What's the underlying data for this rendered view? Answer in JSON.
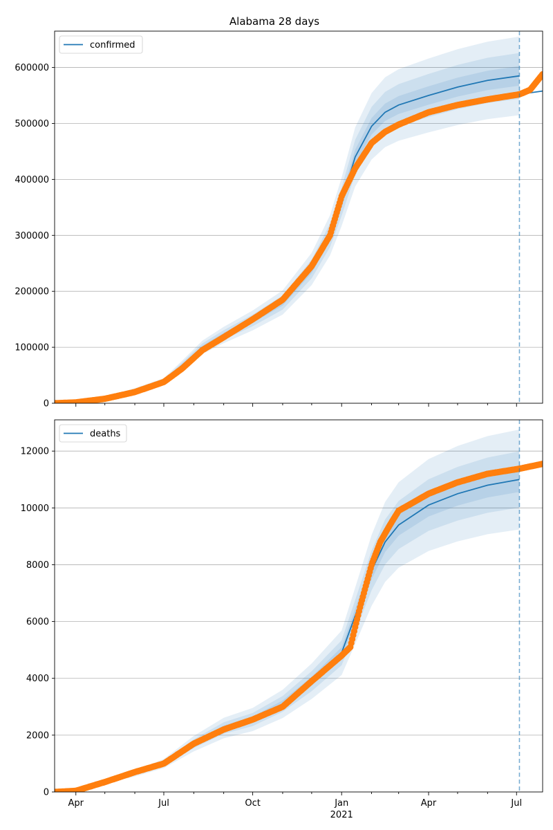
{
  "title": "Alabama 28 days",
  "colors": {
    "model": "#1f77b4",
    "observed": "#ff7f0e",
    "band": "#1f77b4",
    "grid": "#b0b0b0",
    "vline": "#1f77b4"
  },
  "x_axis": {
    "date_range": [
      "2020-03-10",
      "2021-07-28"
    ],
    "ticks": [
      {
        "date": "2020-04-01",
        "label": "Apr"
      },
      {
        "date": "2020-07-01",
        "label": "Jul"
      },
      {
        "date": "2020-10-01",
        "label": "Oct"
      },
      {
        "date": "2021-01-01",
        "label": "Jan"
      },
      {
        "date": "2021-04-01",
        "label": "Apr"
      },
      {
        "date": "2021-07-01",
        "label": "Jul"
      }
    ],
    "year_label": "2021",
    "minor_ticks": "monthly",
    "forecast_start": "2021-07-04"
  },
  "chart_data": [
    {
      "type": "line",
      "name": "confirmed",
      "legend": "upper left",
      "ylim": [
        0,
        665000
      ],
      "yticks": [
        0,
        100000,
        200000,
        300000,
        400000,
        500000,
        600000
      ],
      "grid": "horizontal",
      "model": [
        [
          "2020-03-10",
          0
        ],
        [
          "2020-04-01",
          1500
        ],
        [
          "2020-05-01",
          10000
        ],
        [
          "2020-06-01",
          24000
        ],
        [
          "2020-07-01",
          40000
        ],
        [
          "2020-07-20",
          68000
        ],
        [
          "2020-08-10",
          100000
        ],
        [
          "2020-09-01",
          122000
        ],
        [
          "2020-10-01",
          148000
        ],
        [
          "2020-11-01",
          180000
        ],
        [
          "2020-12-01",
          240000
        ],
        [
          "2020-12-20",
          300000
        ],
        [
          "2021-01-01",
          360000
        ],
        [
          "2021-01-15",
          440000
        ],
        [
          "2021-02-01",
          495000
        ],
        [
          "2021-02-15",
          520000
        ],
        [
          "2021-03-01",
          533000
        ],
        [
          "2021-04-01",
          550000
        ],
        [
          "2021-05-01",
          565000
        ],
        [
          "2021-06-01",
          577000
        ],
        [
          "2021-07-04",
          585000
        ]
      ],
      "model_ext": [
        [
          "2021-07-04",
          552000
        ],
        [
          "2021-07-28",
          558000
        ]
      ],
      "band_offsets": [
        0.03,
        0.07,
        0.12
      ],
      "observed": [
        [
          "2020-03-10",
          0
        ],
        [
          "2020-04-01",
          1500
        ],
        [
          "2020-05-01",
          8000
        ],
        [
          "2020-06-01",
          20000
        ],
        [
          "2020-07-01",
          38000
        ],
        [
          "2020-07-20",
          62000
        ],
        [
          "2020-08-10",
          95000
        ],
        [
          "2020-09-01",
          118000
        ],
        [
          "2020-10-01",
          150000
        ],
        [
          "2020-11-01",
          185000
        ],
        [
          "2020-12-01",
          245000
        ],
        [
          "2020-12-20",
          300000
        ],
        [
          "2021-01-01",
          370000
        ],
        [
          "2021-01-15",
          420000
        ],
        [
          "2021-02-01",
          465000
        ],
        [
          "2021-02-15",
          485000
        ],
        [
          "2021-03-01",
          498000
        ],
        [
          "2021-04-01",
          520000
        ],
        [
          "2021-05-01",
          533000
        ],
        [
          "2021-06-01",
          543000
        ],
        [
          "2021-07-04",
          552000
        ],
        [
          "2021-07-15",
          560000
        ],
        [
          "2021-07-28",
          588000
        ]
      ]
    },
    {
      "type": "line",
      "name": "deaths",
      "legend": "upper left",
      "ylim": [
        0,
        13100
      ],
      "yticks": [
        0,
        2000,
        4000,
        6000,
        8000,
        10000,
        12000
      ],
      "grid": "horizontal",
      "model": [
        [
          "2020-03-10",
          0
        ],
        [
          "2020-04-01",
          40
        ],
        [
          "2020-05-01",
          350
        ],
        [
          "2020-06-01",
          650
        ],
        [
          "2020-07-01",
          1000
        ],
        [
          "2020-08-01",
          1700
        ],
        [
          "2020-09-01",
          2250
        ],
        [
          "2020-10-01",
          2550
        ],
        [
          "2020-11-01",
          3100
        ],
        [
          "2020-12-01",
          3900
        ],
        [
          "2021-01-01",
          4900
        ],
        [
          "2021-01-15",
          6200
        ],
        [
          "2021-02-01",
          7800
        ],
        [
          "2021-02-15",
          8800
        ],
        [
          "2021-03-01",
          9400
        ],
        [
          "2021-04-01",
          10100
        ],
        [
          "2021-05-01",
          10500
        ],
        [
          "2021-06-01",
          10800
        ],
        [
          "2021-07-04",
          11000
        ]
      ],
      "model_ext": [],
      "band_offsets": [
        0.04,
        0.09,
        0.16
      ],
      "observed": [
        [
          "2020-03-10",
          0
        ],
        [
          "2020-04-01",
          40
        ],
        [
          "2020-05-01",
          350
        ],
        [
          "2020-06-01",
          700
        ],
        [
          "2020-07-01",
          1000
        ],
        [
          "2020-08-01",
          1700
        ],
        [
          "2020-09-01",
          2200
        ],
        [
          "2020-10-01",
          2550
        ],
        [
          "2020-11-01",
          3000
        ],
        [
          "2020-12-01",
          3900
        ],
        [
          "2021-01-01",
          4800
        ],
        [
          "2021-01-10",
          5100
        ],
        [
          "2021-01-20",
          6500
        ],
        [
          "2021-02-01",
          8000
        ],
        [
          "2021-02-10",
          8800
        ],
        [
          "2021-02-20",
          9400
        ],
        [
          "2021-03-01",
          9900
        ],
        [
          "2021-04-01",
          10500
        ],
        [
          "2021-05-01",
          10900
        ],
        [
          "2021-06-01",
          11200
        ],
        [
          "2021-07-04",
          11380
        ],
        [
          "2021-07-28",
          11550
        ]
      ]
    }
  ]
}
